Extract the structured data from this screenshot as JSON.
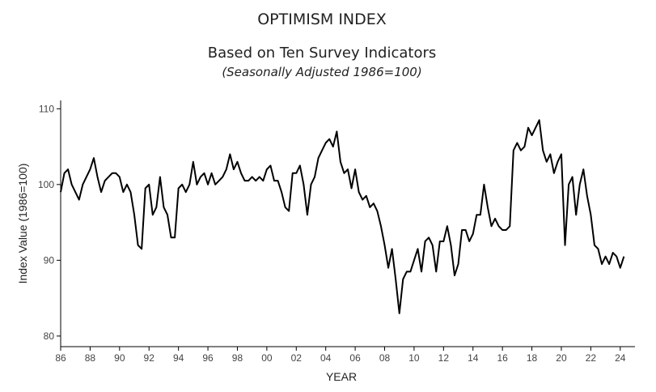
{
  "chart_data": {
    "type": "line",
    "title": "OPTIMISM INDEX",
    "subtitle": "Based on Ten Survey Indicators",
    "note": "(Seasonally Adjusted 1986=100)",
    "x_label": "YEAR",
    "y_label": "Index Value (1986=100)",
    "xlim": [
      1986,
      2025
    ],
    "ylim": [
      78.6,
      111.1
    ],
    "xticks": [
      {
        "value": 1986,
        "label": "86"
      },
      {
        "value": 1988,
        "label": "88"
      },
      {
        "value": 1990,
        "label": "90"
      },
      {
        "value": 1992,
        "label": "92"
      },
      {
        "value": 1994,
        "label": "94"
      },
      {
        "value": 1996,
        "label": "96"
      },
      {
        "value": 1998,
        "label": "98"
      },
      {
        "value": 2000,
        "label": "00"
      },
      {
        "value": 2002,
        "label": "02"
      },
      {
        "value": 2004,
        "label": "04"
      },
      {
        "value": 2006,
        "label": "06"
      },
      {
        "value": 2008,
        "label": "08"
      },
      {
        "value": 2010,
        "label": "10"
      },
      {
        "value": 2012,
        "label": "12"
      },
      {
        "value": 2014,
        "label": "14"
      },
      {
        "value": 2016,
        "label": "16"
      },
      {
        "value": 2018,
        "label": "18"
      },
      {
        "value": 2020,
        "label": "20"
      },
      {
        "value": 2022,
        "label": "22"
      },
      {
        "value": 2024,
        "label": "24"
      }
    ],
    "yticks": [
      80,
      90,
      100,
      110
    ],
    "x": [
      1986,
      1986.25,
      1986.5,
      1986.75,
      1987,
      1987.25,
      1987.5,
      1987.75,
      1988,
      1988.25,
      1988.5,
      1988.75,
      1989,
      1989.25,
      1989.5,
      1989.75,
      1990,
      1990.25,
      1990.5,
      1990.75,
      1991,
      1991.25,
      1991.5,
      1991.75,
      1992,
      1992.25,
      1992.5,
      1992.75,
      1993,
      1993.25,
      1993.5,
      1993.75,
      1994,
      1994.25,
      1994.5,
      1994.75,
      1995,
      1995.25,
      1995.5,
      1995.75,
      1996,
      1996.25,
      1996.5,
      1996.75,
      1997,
      1997.25,
      1997.5,
      1997.75,
      1998,
      1998.25,
      1998.5,
      1998.75,
      1999,
      1999.25,
      1999.5,
      1999.75,
      2000,
      2000.25,
      2000.5,
      2000.75,
      2001,
      2001.25,
      2001.5,
      2001.75,
      2002,
      2002.25,
      2002.5,
      2002.75,
      2003,
      2003.25,
      2003.5,
      2003.75,
      2004,
      2004.25,
      2004.5,
      2004.75,
      2005,
      2005.25,
      2005.5,
      2005.75,
      2006,
      2006.25,
      2006.5,
      2006.75,
      2007,
      2007.25,
      2007.5,
      2007.75,
      2008,
      2008.25,
      2008.5,
      2008.75,
      2009,
      2009.25,
      2009.5,
      2009.75,
      2010,
      2010.25,
      2010.5,
      2010.75,
      2011,
      2011.25,
      2011.5,
      2011.75,
      2012,
      2012.25,
      2012.5,
      2012.75,
      2013,
      2013.25,
      2013.5,
      2013.75,
      2014,
      2014.25,
      2014.5,
      2014.75,
      2015,
      2015.25,
      2015.5,
      2015.75,
      2016,
      2016.25,
      2016.5,
      2016.75,
      2017,
      2017.25,
      2017.5,
      2017.75,
      2018,
      2018.25,
      2018.5,
      2018.75,
      2019,
      2019.25,
      2019.5,
      2019.75,
      2020,
      2020.25,
      2020.5,
      2020.75,
      2021,
      2021.25,
      2021.5,
      2021.75,
      2022,
      2022.25,
      2022.5,
      2022.75,
      2023,
      2023.25,
      2023.5,
      2023.75,
      2024,
      2024.25
    ],
    "series": [
      {
        "color": "#000000",
        "values": [
          99,
          101.5,
          102,
          100,
          99,
          98,
          100,
          101,
          102,
          103.5,
          101,
          99,
          100.5,
          101,
          101.5,
          101.5,
          101,
          99,
          100,
          99,
          96,
          92,
          91.5,
          99.5,
          100,
          96,
          97,
          101,
          97,
          96,
          93,
          93,
          99.5,
          100,
          99,
          100,
          103,
          100,
          101,
          101.5,
          100,
          101.5,
          100,
          100.5,
          101,
          102,
          104,
          102,
          103,
          101.5,
          100.5,
          100.5,
          101,
          100.5,
          101,
          100.5,
          102,
          102.5,
          100.5,
          100.5,
          99,
          97,
          96.5,
          101.5,
          101.5,
          102.5,
          100,
          96,
          100,
          101,
          103.5,
          104.5,
          105.5,
          106,
          105,
          107,
          103,
          101.5,
          102,
          99.5,
          102,
          99,
          98,
          98.5,
          97,
          97.5,
          96.5,
          94.5,
          92,
          89,
          91.5,
          87.5,
          83,
          87.5,
          88.5,
          88.5,
          90,
          91.5,
          88.5,
          92.5,
          93,
          92,
          88.5,
          92.5,
          92.5,
          94.5,
          92,
          88,
          89.5,
          94,
          94,
          92.5,
          93.5,
          96,
          96,
          100,
          97,
          94.5,
          95.5,
          94.5,
          94,
          94,
          94.5,
          104.5,
          105.5,
          104.5,
          105,
          107.5,
          106.5,
          107.5,
          108.5,
          104.5,
          103,
          104,
          101.5,
          103,
          104,
          92,
          100,
          101,
          96,
          100,
          102,
          98.5,
          96,
          92,
          91.5,
          89.5,
          90.5,
          89.5,
          91,
          90.5,
          89,
          90.5
        ]
      }
    ]
  }
}
